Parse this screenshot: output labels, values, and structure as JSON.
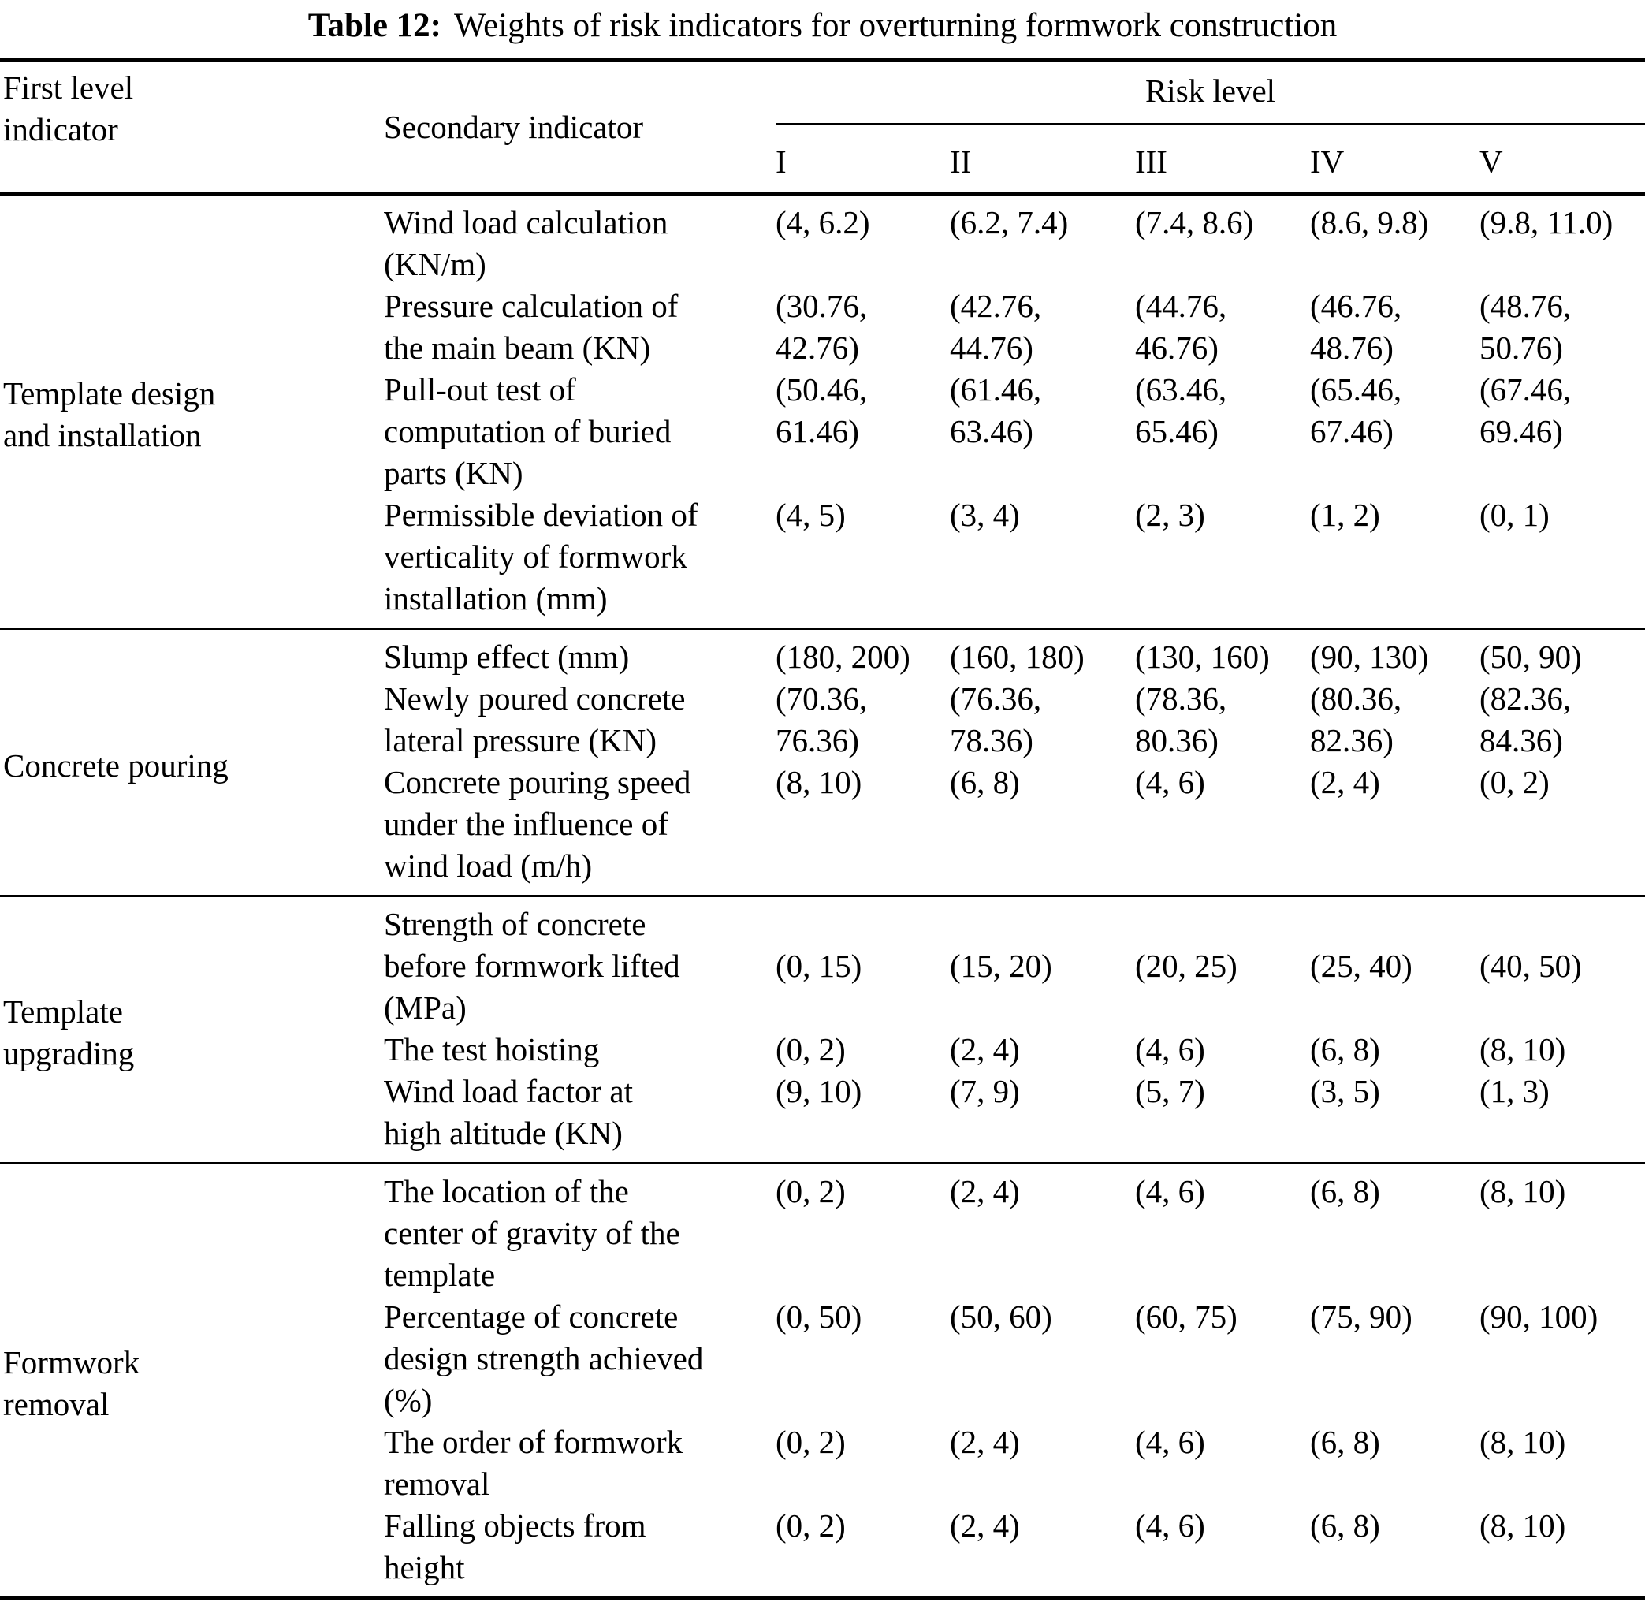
{
  "title": {
    "label": "Table 12:",
    "text": "Weights of risk indicators for overturning formwork construction"
  },
  "table": {
    "col1_header": "First level\nindicator",
    "col2_header": "Secondary indicator",
    "risk_header": "Risk level",
    "risk_levels": [
      "I",
      "II",
      "III",
      "IV",
      "V"
    ],
    "groups": [
      {
        "first_level": "Template design\nand installation",
        "rows": [
          {
            "secondary": "Wind load calculation\n(KN/m)",
            "values": [
              "(4, 6.2)",
              "(6.2, 7.4)",
              "(7.4, 8.6)",
              "(8.6, 9.8)",
              "(9.8, 11.0)"
            ]
          },
          {
            "secondary": "Pressure calculation of\nthe main beam (KN)",
            "values": [
              "(30.76,\n42.76)",
              "(42.76,\n44.76)",
              "(44.76,\n46.76)",
              "(46.76,\n48.76)",
              "(48.76,\n50.76)"
            ]
          },
          {
            "secondary": "Pull-out test of\ncomputation of buried\nparts (KN)",
            "values": [
              "(50.46,\n61.46)",
              "(61.46,\n63.46)",
              "(63.46,\n65.46)",
              "(65.46,\n67.46)",
              "(67.46,\n69.46)"
            ]
          },
          {
            "secondary": "Permissible deviation of\nverticality of formwork\ninstallation (mm)",
            "values": [
              "(4, 5)",
              "(3, 4)",
              "(2, 3)",
              "(1, 2)",
              "(0, 1)"
            ]
          }
        ]
      },
      {
        "first_level": "Concrete pouring",
        "rows": [
          {
            "secondary": "Slump effect (mm)",
            "values": [
              "(180, 200)",
              "(160, 180)",
              "(130, 160)",
              "(90, 130)",
              "(50, 90)"
            ]
          },
          {
            "secondary": "Newly poured concrete\nlateral pressure (KN)",
            "values": [
              "(70.36,\n76.36)",
              "(76.36,\n78.36)",
              "(78.36,\n80.36)",
              "(80.36,\n82.36)",
              "(82.36,\n84.36)"
            ]
          },
          {
            "secondary": "Concrete pouring speed\nunder the influence of\nwind load (m/h)",
            "values": [
              "(8, 10)",
              "(6, 8)",
              "(4, 6)",
              "(2, 4)",
              "(0, 2)"
            ]
          }
        ]
      },
      {
        "first_level": "Template\nupgrading",
        "rows": [
          {
            "secondary": "Strength of concrete\nbefore formwork lifted\n(MPa)",
            "values": [
              "\n(0, 15)",
              "\n(15, 20)",
              "\n(20, 25)",
              "\n(25, 40)",
              "\n(40, 50)"
            ]
          },
          {
            "secondary": "The test hoisting",
            "values": [
              "(0, 2)",
              "(2, 4)",
              "(4, 6)",
              "(6, 8)",
              "(8, 10)"
            ]
          },
          {
            "secondary": "Wind load factor at\nhigh altitude (KN)",
            "values": [
              "(9, 10)",
              "(7, 9)",
              "(5, 7)",
              "(3, 5)",
              "(1, 3)"
            ]
          }
        ]
      },
      {
        "first_level": "Formwork\nremoval",
        "rows": [
          {
            "secondary": "The location of the\ncenter of gravity of the\ntemplate",
            "values": [
              "(0, 2)",
              "(2, 4)",
              "(4, 6)",
              "(6, 8)",
              "(8, 10)"
            ]
          },
          {
            "secondary": "Percentage of concrete\ndesign strength achieved\n(%)",
            "values": [
              "(0, 50)",
              "(50, 60)",
              "(60, 75)",
              "(75, 90)",
              "(90, 100)"
            ]
          },
          {
            "secondary": "The order of formwork\nremoval",
            "values": [
              "(0, 2)",
              "(2, 4)",
              "(4, 6)",
              "(6, 8)",
              "(8, 10)"
            ]
          },
          {
            "secondary": "Falling objects from\nheight",
            "values": [
              "(0, 2)",
              "(2, 4)",
              "(4, 6)",
              "(6, 8)",
              "(8, 10)"
            ]
          }
        ]
      }
    ]
  }
}
